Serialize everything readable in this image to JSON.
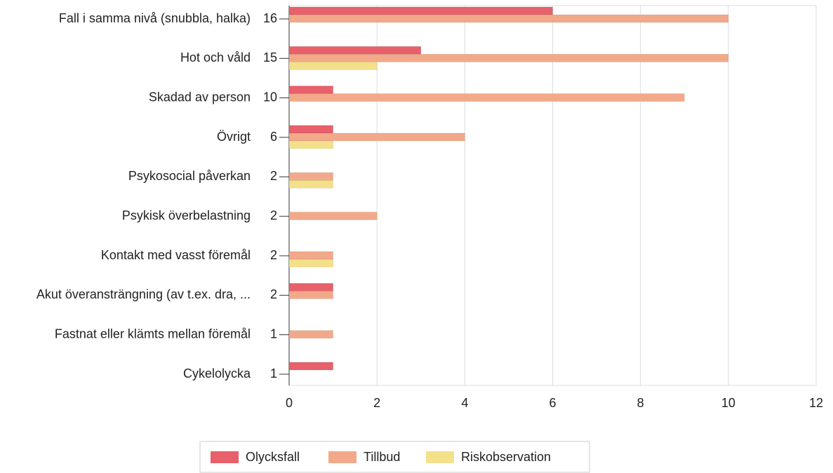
{
  "chart_data": {
    "type": "hbar",
    "categories": [
      "Fall i samma nivå (snubbla, halka)",
      "Hot och våld",
      "Skadad av person",
      "Övrigt",
      "Psykosocial påverkan",
      "Psykisk överbelastning",
      "Kontakt med vasst föremål",
      "Akut överansträngning (av t.ex. dra, ...",
      "Fastnat eller klämts mellan föremål",
      "Cykelolycka"
    ],
    "category_totals": [
      16,
      15,
      10,
      6,
      2,
      2,
      2,
      2,
      1,
      1
    ],
    "series": [
      {
        "name": "Olycksfall",
        "color": "#e8606a",
        "values": [
          6,
          3,
          1,
          1,
          0,
          0,
          0,
          1,
          0,
          1
        ]
      },
      {
        "name": "Tillbud",
        "color": "#f2a98a",
        "values": [
          10,
          10,
          9,
          4,
          1,
          2,
          1,
          1,
          1,
          0
        ]
      },
      {
        "name": "Riskobservation",
        "color": "#f5e08a",
        "values": [
          0,
          2,
          0,
          1,
          1,
          0,
          1,
          0,
          0,
          0
        ]
      }
    ],
    "xlim": [
      0,
      12
    ],
    "xticks": [
      0,
      2,
      4,
      6,
      8,
      10,
      12
    ],
    "grid": true,
    "legend": "bottom"
  }
}
